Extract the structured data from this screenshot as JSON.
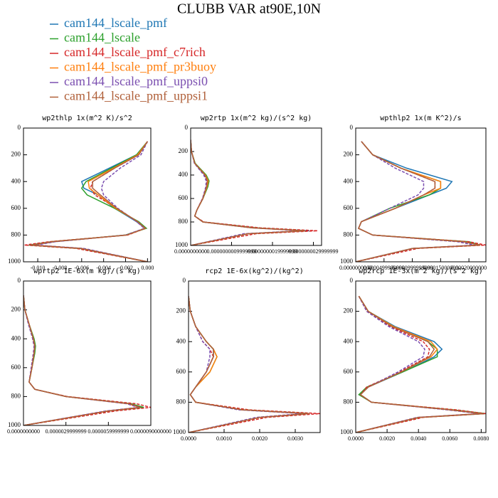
{
  "title": "CLUBB VAR at90E,10N",
  "legend": [
    {
      "name": "cam144_lscale_pmf",
      "color": "#1f77b4",
      "dashed": false
    },
    {
      "name": "cam144_lscale",
      "color": "#2ca02c",
      "dashed": false
    },
    {
      "name": "cam144_lscale_pmf_c7rich",
      "color": "#d62728",
      "dashed": true
    },
    {
      "name": "cam144_lscale_pmf_pr3buoy",
      "color": "#ff7f0e",
      "dashed": false
    },
    {
      "name": "cam144_lscale_pmf_uppsi0",
      "color": "#7b4fb0",
      "dashed": true
    },
    {
      "name": "cam144_lscale_pmf_uppsi1",
      "color": "#b0603a",
      "dashed": false
    }
  ],
  "chart_data": [
    {
      "type": "line",
      "title": "wp2thlp  1x(m^2 K)/s^2",
      "y": [
        100,
        200,
        300,
        400,
        450,
        500,
        600,
        700,
        750,
        800,
        850,
        875,
        900,
        1000
      ],
      "ylim": [
        1000,
        0
      ],
      "yticks": [
        0,
        200,
        400,
        600,
        800,
        1000
      ],
      "xlim": [
        -0.0113,
        0.0003
      ],
      "xticks": [
        {
          "value": -0.01,
          "label": "-0.010"
        },
        {
          "value": -0.008,
          "label": "-0.008"
        },
        {
          "value": -0.006,
          "label": "-0.006"
        },
        {
          "value": -0.004,
          "label": "-0.004"
        },
        {
          "value": -0.002,
          "label": "-0.002"
        },
        {
          "value": 0,
          "label": "0.000"
        }
      ],
      "series": [
        {
          "values": [
            0,
            -0.001,
            -0.0035,
            -0.006,
            -0.0058,
            -0.0045,
            -0.003,
            -0.001,
            -0.0002,
            -0.002,
            -0.0085,
            -0.0105,
            -0.006,
            0
          ]
        },
        {
          "values": [
            0,
            -0.001,
            -0.0033,
            -0.0056,
            -0.006,
            -0.0055,
            -0.003,
            -0.0008,
            -0.0001,
            -0.002,
            -0.0088,
            -0.0108,
            -0.0062,
            0
          ]
        },
        {
          "values": [
            0,
            -0.0008,
            -0.003,
            -0.005,
            -0.0052,
            -0.0048,
            -0.0028,
            -0.0009,
            -0.0002,
            -0.0018,
            -0.009,
            -0.0112,
            -0.0065,
            0
          ]
        },
        {
          "values": [
            0,
            -0.0009,
            -0.0031,
            -0.0054,
            -0.0053,
            -0.0045,
            -0.0029,
            -0.0009,
            -0.0002,
            -0.0019,
            -0.0086,
            -0.0104,
            -0.006,
            0
          ]
        },
        {
          "values": [
            0,
            -0.0006,
            -0.0025,
            -0.004,
            -0.0042,
            -0.004,
            -0.0027,
            -0.001,
            -0.0003,
            -0.002,
            -0.0084,
            -0.0102,
            -0.0058,
            0
          ]
        },
        {
          "values": [
            0,
            -0.0008,
            -0.003,
            -0.005,
            -0.005,
            -0.0043,
            -0.0028,
            -0.0009,
            -0.0002,
            -0.0019,
            -0.0087,
            -0.0106,
            -0.0061,
            0
          ]
        }
      ]
    },
    {
      "type": "line",
      "title": "wp2rtp  1x(m^2 kg)/(s^2 kg)",
      "y": [
        100,
        200,
        300,
        400,
        450,
        500,
        600,
        700,
        750,
        800,
        850,
        875,
        900,
        1000
      ],
      "ylim": [
        1000,
        0
      ],
      "yticks": [
        0,
        200,
        400,
        600,
        800,
        1000
      ],
      "xlim": [
        0,
        3.2e-09
      ],
      "xticks": [
        {
          "value": 0,
          "label": "0.0000000000"
        },
        {
          "value": 1e-09,
          "label": "0.0000000009999999"
        },
        {
          "value": 2e-09,
          "label": "0.0000000019999999"
        },
        {
          "value": 3e-09,
          "label": "0.0000000029999999"
        }
      ],
      "series": [
        {
          "values": [
            0,
            2e-11,
            1e-10,
            3.5e-10,
            4.2e-10,
            4e-10,
            3e-10,
            1.5e-10,
            1e-10,
            3e-10,
            1.5e-09,
            2.9e-09,
            1.4e-09,
            0
          ]
        },
        {
          "values": [
            0,
            2e-11,
            1.1e-10,
            3.8e-10,
            4.5e-10,
            4.2e-10,
            3e-10,
            1.5e-10,
            1e-10,
            3e-10,
            1.6e-09,
            2.8e-09,
            1.4e-09,
            0
          ]
        },
        {
          "values": [
            0,
            2e-11,
            1e-10,
            3.4e-10,
            4e-10,
            3.8e-10,
            2.9e-10,
            1.5e-10,
            1e-10,
            3.2e-10,
            1.7e-09,
            3.1e-09,
            1.6e-09,
            0
          ]
        },
        {
          "values": [
            0,
            2e-11,
            1e-10,
            3.6e-10,
            4.3e-10,
            4e-10,
            3e-10,
            1.5e-10,
            1e-10,
            3e-10,
            1.5e-09,
            2.8e-09,
            1.4e-09,
            0
          ]
        },
        {
          "values": [
            0,
            2e-11,
            9e-11,
            3.2e-10,
            3.8e-10,
            3.7e-10,
            2.9e-10,
            1.5e-10,
            1e-10,
            3e-10,
            1.5e-09,
            2.7e-09,
            1.3e-09,
            0
          ]
        },
        {
          "values": [
            0,
            2e-11,
            1e-10,
            3.5e-10,
            4.1e-10,
            3.9e-10,
            3e-10,
            1.5e-10,
            1e-10,
            3e-10,
            1.5e-09,
            2.8e-09,
            1.4e-09,
            0
          ]
        }
      ]
    },
    {
      "type": "line",
      "title": "wpthlp2  1x(m K^2)/s",
      "y": [
        100,
        200,
        300,
        400,
        450,
        500,
        600,
        700,
        750,
        800,
        850,
        875,
        900,
        1000
      ],
      "ylim": [
        1000,
        0
      ],
      "yticks": [
        0,
        200,
        400,
        600,
        800,
        1000
      ],
      "xlim": [
        0,
        0.00023
      ],
      "xticks": [
        {
          "value": 0,
          "label": "0.0000000000"
        },
        {
          "value": 5e-05,
          "label": "0.0000499999999"
        },
        {
          "value": 0.0001,
          "label": "0.0000999999999"
        },
        {
          "value": 0.00015,
          "label": "0.00015000000"
        },
        {
          "value": 0.0002,
          "label": "0.00020000000"
        }
      ],
      "series": [
        {
          "values": [
            1e-05,
            3e-05,
            9e-05,
            0.00017,
            0.00016,
            0.00013,
            7e-05,
            1e-05,
            5e-06,
            3e-05,
            0.00019,
            0.00022,
            0.0001,
            0
          ]
        },
        {
          "values": [
            1e-05,
            3e-05,
            8e-05,
            0.00015,
            0.00015,
            0.00013,
            6e-05,
            1e-05,
            5e-06,
            3e-05,
            0.0002,
            0.00022,
            0.0001,
            0
          ]
        },
        {
          "values": [
            1e-05,
            3e-05,
            8e-05,
            0.00014,
            0.00014,
            0.00012,
            7e-05,
            1e-05,
            5e-06,
            3e-05,
            0.0002,
            0.00023,
            0.00011,
            0
          ]
        },
        {
          "values": [
            1e-05,
            3e-05,
            8e-05,
            0.00015,
            0.00015,
            0.00012,
            7e-05,
            1e-05,
            5e-06,
            3e-05,
            0.00019,
            0.00022,
            0.0001,
            0
          ]
        },
        {
          "values": [
            1e-05,
            3e-05,
            7e-05,
            0.00012,
            0.00012,
            0.00011,
            6e-05,
            1e-05,
            5e-06,
            3e-05,
            0.00018,
            0.00021,
            0.0001,
            0
          ]
        },
        {
          "values": [
            1e-05,
            3e-05,
            8e-05,
            0.00014,
            0.00014,
            0.00012,
            7e-05,
            1e-05,
            5e-06,
            3e-05,
            0.00019,
            0.00022,
            0.0001,
            0
          ]
        }
      ]
    },
    {
      "type": "line",
      "title": "wprtp2  1E-6x(m kg)/(s kg)",
      "y": [
        100,
        200,
        300,
        400,
        450,
        500,
        600,
        700,
        750,
        800,
        850,
        875,
        900,
        1000
      ],
      "ylim": [
        1000,
        0
      ],
      "yticks": [
        0,
        200,
        400,
        600,
        800,
        1000
      ],
      "xlim": [
        0,
        9e-06
      ],
      "xticks": [
        {
          "value": 0,
          "label": "0.0000000000"
        },
        {
          "value": 3e-06,
          "label": "0.0000029999999"
        },
        {
          "value": 6e-06,
          "label": "0.0000059999999"
        },
        {
          "value": 9e-06,
          "label": "0.0000090000000"
        }
      ],
      "series": [
        {
          "values": [
            0,
            1e-07,
            4e-07,
            7e-07,
            8e-07,
            7.5e-07,
            6e-07,
            4e-07,
            8e-07,
            3e-06,
            7.5e-06,
            8.3e-06,
            6e-06,
            0
          ]
        },
        {
          "values": [
            0,
            1e-07,
            4e-07,
            7.5e-07,
            8.5e-07,
            8e-07,
            6e-07,
            4e-07,
            8e-07,
            3e-06,
            7.6e-06,
            8.5e-06,
            6e-06,
            0
          ]
        },
        {
          "values": [
            0,
            1e-07,
            4e-07,
            6.5e-07,
            7.5e-07,
            7e-07,
            5.5e-07,
            4e-07,
            8e-07,
            3.1e-06,
            8e-06,
            9e-06,
            6.5e-06,
            0
          ]
        },
        {
          "values": [
            0,
            1e-07,
            4e-07,
            7e-07,
            8e-07,
            7.5e-07,
            6e-07,
            4e-07,
            8e-07,
            3e-06,
            7.4e-06,
            8.2e-06,
            5.9e-06,
            0
          ]
        },
        {
          "values": [
            0,
            1e-07,
            3.5e-07,
            6.5e-07,
            7.5e-07,
            7e-07,
            5.5e-07,
            4e-07,
            8e-07,
            3e-06,
            7.3e-06,
            8.1e-06,
            5.8e-06,
            0
          ]
        },
        {
          "values": [
            0,
            1e-07,
            4e-07,
            7e-07,
            8e-07,
            7.5e-07,
            6e-07,
            4e-07,
            8e-07,
            3e-06,
            7.5e-06,
            8.3e-06,
            6e-06,
            0
          ]
        }
      ]
    },
    {
      "type": "line",
      "title": "rcp2  1E-6x(kg^2)/(kg^2)",
      "y": [
        100,
        200,
        300,
        400,
        450,
        500,
        600,
        700,
        750,
        800,
        850,
        875,
        900,
        1000
      ],
      "ylim": [
        1000,
        0
      ],
      "yticks": [
        0,
        200,
        400,
        600,
        800,
        1000
      ],
      "xlim": [
        0,
        0.0037
      ],
      "xticks": [
        {
          "value": 0,
          "label": "0.0000"
        },
        {
          "value": 0.001,
          "label": "0.0010"
        },
        {
          "value": 0.002,
          "label": "0.0020"
        },
        {
          "value": 0.003,
          "label": "0.0030"
        }
      ],
      "series": [
        {
          "values": [
            0,
            5e-05,
            0.0002,
            0.0005,
            0.0007,
            0.0007,
            0.0005,
            0.0002,
            5e-05,
            0.0002,
            0.0015,
            0.0034,
            0.002,
            0
          ]
        },
        {
          "values": [
            0,
            5e-05,
            0.0002,
            0.0005,
            0.0007,
            0.0008,
            0.0006,
            0.0002,
            5e-05,
            0.0002,
            0.0015,
            0.0034,
            0.002,
            0
          ]
        },
        {
          "values": [
            0,
            5e-05,
            0.0002,
            0.0004,
            0.0006,
            0.0007,
            0.0005,
            0.0002,
            5e-05,
            0.0002,
            0.0017,
            0.0037,
            0.0022,
            0
          ]
        },
        {
          "values": [
            0,
            5e-05,
            0.0002,
            0.0005,
            0.0007,
            0.0008,
            0.0006,
            0.0002,
            5e-05,
            0.0002,
            0.0015,
            0.0033,
            0.002,
            0
          ]
        },
        {
          "values": [
            0,
            5e-05,
            0.0002,
            0.0004,
            0.0006,
            0.0006,
            0.0005,
            0.0002,
            5e-05,
            0.0002,
            0.0014,
            0.0032,
            0.0019,
            0
          ]
        },
        {
          "values": [
            0,
            5e-05,
            0.0002,
            0.0005,
            0.0007,
            0.0007,
            0.0005,
            0.0002,
            5e-05,
            0.0002,
            0.0015,
            0.0034,
            0.002,
            0
          ]
        }
      ]
    },
    {
      "type": "line",
      "title": "wp2rcp  1E-3x(m^2 kg)/(s^2 kg)",
      "y": [
        100,
        200,
        300,
        400,
        450,
        500,
        600,
        700,
        750,
        800,
        850,
        875,
        900,
        1000
      ],
      "ylim": [
        1000,
        0
      ],
      "yticks": [
        0,
        200,
        400,
        600,
        800,
        1000
      ],
      "xlim": [
        0,
        0.0083
      ],
      "xticks": [
        {
          "value": 0,
          "label": "0.0000"
        },
        {
          "value": 0.002,
          "label": "0.0020"
        },
        {
          "value": 0.004,
          "label": "0.0040"
        },
        {
          "value": 0.006,
          "label": "0.0060"
        },
        {
          "value": 0.008,
          "label": "0.0080"
        }
      ],
      "series": [
        {
          "values": [
            0.0002,
            0.0008,
            0.0025,
            0.005,
            0.0055,
            0.005,
            0.003,
            0.0008,
            0.0003,
            0.001,
            0.006,
            0.0082,
            0.004,
            0
          ]
        },
        {
          "values": [
            0.0002,
            0.0008,
            0.0024,
            0.0046,
            0.0052,
            0.0052,
            0.003,
            0.0007,
            0.0002,
            0.001,
            0.0062,
            0.0083,
            0.0041,
            0
          ]
        },
        {
          "values": [
            0.0002,
            0.0007,
            0.0022,
            0.0043,
            0.0047,
            0.0046,
            0.0028,
            0.0007,
            0.0003,
            0.001,
            0.0064,
            0.0083,
            0.0043,
            0
          ]
        },
        {
          "values": [
            0.0002,
            0.0008,
            0.0024,
            0.0048,
            0.0052,
            0.0048,
            0.0029,
            0.0008,
            0.0003,
            0.001,
            0.006,
            0.008,
            0.004,
            0
          ]
        },
        {
          "values": [
            0.0002,
            0.0007,
            0.0021,
            0.004,
            0.0044,
            0.0043,
            0.0027,
            0.0008,
            0.0003,
            0.001,
            0.0058,
            0.0079,
            0.0039,
            0
          ]
        },
        {
          "values": [
            0.0002,
            0.0008,
            0.0023,
            0.0046,
            0.005,
            0.0047,
            0.0029,
            0.0008,
            0.0003,
            0.001,
            0.006,
            0.0081,
            0.004,
            0
          ]
        }
      ]
    }
  ]
}
